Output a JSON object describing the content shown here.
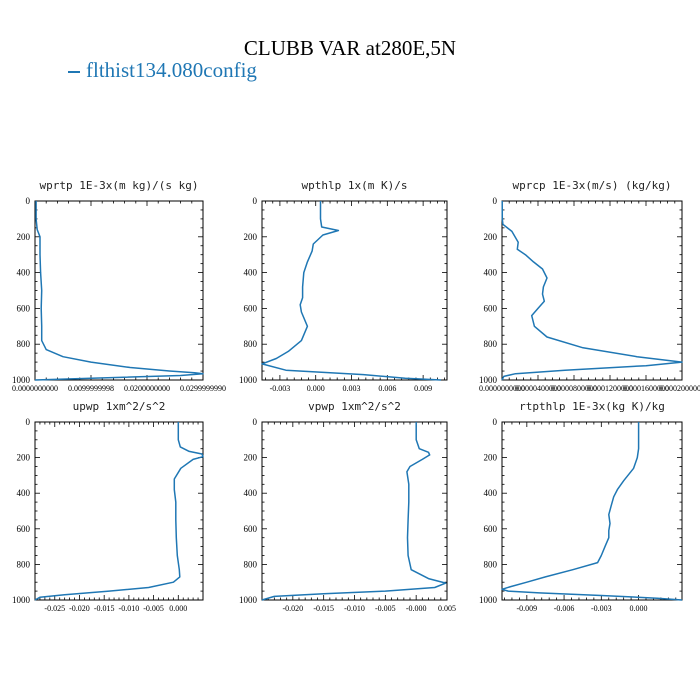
{
  "title": "CLUBB VAR at280E,5N",
  "legend": {
    "label": "flthist134.080config",
    "color": "#1f77b4"
  },
  "chart_data": [
    {
      "type": "line",
      "title": "wprtp  1E-3x(m kg)/(s kg)",
      "xlim": [
        0,
        0.03
      ],
      "xticks": [
        "0.0000000000",
        "0.0099999998",
        "0.0200000000",
        "0.0299999990"
      ],
      "xtick_values": [
        0,
        0.01,
        0.02,
        0.03
      ],
      "ylim": [
        1000,
        0
      ],
      "yticks": [
        0,
        200,
        400,
        600,
        800,
        1000
      ],
      "series": [
        {
          "color": "#1f77b4",
          "y": [
            0,
            100,
            160,
            200,
            260,
            300,
            400,
            500,
            600,
            700,
            780,
            830,
            870,
            900,
            930,
            950,
            960,
            965,
            975,
            990,
            1000
          ],
          "x": [
            0.0002,
            0.0002,
            0.0004,
            0.0009,
            0.0009,
            0.0009,
            0.001,
            0.0012,
            0.0011,
            0.0012,
            0.0012,
            0.002,
            0.005,
            0.01,
            0.017,
            0.024,
            0.0285,
            0.03,
            0.026,
            0.01,
            0.0
          ]
        }
      ]
    },
    {
      "type": "line",
      "title": "wpthlp  1x(m K)/s",
      "xlim": [
        -0.0045,
        0.011
      ],
      "xticks": [
        "-0.003",
        "0.000",
        "0.003",
        "0.006",
        "0.009"
      ],
      "xtick_values": [
        -0.003,
        0,
        0.003,
        0.006,
        0.009
      ],
      "ylim": [
        1000,
        0
      ],
      "yticks": [
        0,
        200,
        400,
        600,
        800,
        1000
      ],
      "series": [
        {
          "color": "#1f77b4",
          "y": [
            0,
            100,
            145,
            165,
            190,
            240,
            280,
            340,
            400,
            480,
            540,
            580,
            620,
            700,
            780,
            840,
            880,
            910,
            945,
            970,
            990,
            1000
          ],
          "x": [
            0.0004,
            0.0004,
            0.0005,
            0.0019,
            0.0006,
            -0.0002,
            -0.0003,
            -0.0007,
            -0.001,
            -0.0011,
            -0.0011,
            -0.0013,
            -0.0012,
            -0.0007,
            -0.0012,
            -0.0023,
            -0.0033,
            -0.0045,
            -0.0025,
            0.004,
            0.0075,
            0.0105
          ]
        }
      ]
    },
    {
      "type": "line",
      "title": "wprcp  1E-3x(m/s) (kg/kg)",
      "xlim": [
        0,
        0.0002
      ],
      "xticks": [
        "0.0000000000",
        "0.0000400000",
        "0.0000800000",
        "0.0001200000",
        "0.0001600000",
        "0.0002000000"
      ],
      "xtick_values": [
        0,
        4e-05,
        8e-05,
        0.00012,
        0.00016,
        0.0002
      ],
      "ylim": [
        1000,
        0
      ],
      "yticks": [
        0,
        200,
        400,
        600,
        800,
        1000
      ],
      "series": [
        {
          "color": "#1f77b4",
          "y": [
            0,
            100,
            130,
            170,
            230,
            270,
            300,
            340,
            380,
            430,
            480,
            520,
            560,
            600,
            640,
            700,
            760,
            820,
            870,
            900,
            920,
            945,
            965,
            980,
            1000
          ],
          "x": [
            2e-07,
            3e-07,
            1e-06,
            1.1e-05,
            1.8e-05,
            1.7e-05,
            2.6e-05,
            3.5e-05,
            4.5e-05,
            5e-05,
            4.6e-05,
            4.5e-05,
            4.7e-05,
            4e-05,
            3.3e-05,
            3.6e-05,
            5e-05,
            9e-05,
            0.00015,
            0.0002,
            0.00016,
            7e-05,
            1.5e-05,
            2e-06,
            0.0
          ]
        }
      ]
    },
    {
      "type": "line",
      "title": "upwp  1xm^2/s^2",
      "xlim": [
        -0.029,
        0.005
      ],
      "xticks": [
        "-0.025",
        "-0.020",
        "-0.015",
        "-0.010",
        "-0.005",
        "0.000"
      ],
      "xtick_values": [
        -0.025,
        -0.02,
        -0.015,
        -0.01,
        -0.005,
        0
      ],
      "ylim": [
        1000,
        0
      ],
      "yticks": [
        0,
        200,
        400,
        600,
        800,
        1000
      ],
      "series": [
        {
          "color": "#1f77b4",
          "y": [
            0,
            100,
            140,
            165,
            180,
            195,
            210,
            260,
            320,
            380,
            450,
            550,
            650,
            750,
            830,
            870,
            900,
            930,
            950,
            970,
            985,
            1000
          ],
          "x": [
            0.0,
            0.0,
            0.0004,
            0.0022,
            0.0048,
            0.005,
            0.003,
            0.0005,
            -0.0008,
            -0.0008,
            -0.0005,
            -0.0005,
            -0.0004,
            -0.0002,
            0.0002,
            0.0003,
            -0.001,
            -0.006,
            -0.014,
            -0.023,
            -0.028,
            -0.029
          ]
        }
      ]
    },
    {
      "type": "line",
      "title": "vpwp  1xm^2/s^2",
      "xlim": [
        -0.025,
        0.005
      ],
      "xticks": [
        "-0.020",
        "-0.015",
        "-0.010",
        "-0.005",
        "-0.000",
        "0.005"
      ],
      "xtick_values": [
        -0.02,
        -0.015,
        -0.01,
        -0.005,
        0,
        0.005
      ],
      "ylim": [
        1000,
        0
      ],
      "yticks": [
        0,
        200,
        400,
        600,
        800,
        1000
      ],
      "series": [
        {
          "color": "#1f77b4",
          "y": [
            0,
            100,
            150,
            170,
            185,
            210,
            250,
            280,
            350,
            450,
            550,
            650,
            750,
            830,
            880,
            905,
            930,
            950,
            965,
            980,
            1000
          ],
          "x": [
            0.0,
            0.0,
            0.0005,
            0.002,
            0.0022,
            0.001,
            -0.001,
            -0.0015,
            -0.0012,
            -0.0012,
            -0.0013,
            -0.0014,
            -0.0013,
            -0.0008,
            0.002,
            0.0048,
            0.003,
            -0.005,
            -0.015,
            -0.023,
            -0.025
          ]
        }
      ]
    },
    {
      "type": "line",
      "title": "rtpthlp  1E-3x(kg K)/kg",
      "xlim": [
        -0.011,
        0.0035
      ],
      "xticks": [
        "-0.009",
        "-0.006",
        "-0.003",
        "0.000"
      ],
      "xtick_values": [
        -0.009,
        -0.006,
        -0.003,
        0
      ],
      "ylim": [
        1000,
        0
      ],
      "yticks": [
        0,
        200,
        400,
        600,
        800,
        1000
      ],
      "series": [
        {
          "color": "#1f77b4",
          "y": [
            0,
            150,
            200,
            260,
            330,
            380,
            420,
            470,
            520,
            570,
            610,
            650,
            700,
            750,
            790,
            830,
            870,
            900,
            925,
            940,
            950,
            960,
            975,
            990,
            1000
          ],
          "x": [
            0.0,
            0.0,
            -0.0001,
            -0.0004,
            -0.0012,
            -0.0017,
            -0.002,
            -0.0022,
            -0.0024,
            -0.0023,
            -0.0024,
            -0.0024,
            -0.0027,
            -0.003,
            -0.0033,
            -0.0053,
            -0.0075,
            -0.009,
            -0.0103,
            -0.011,
            -0.0105,
            -0.008,
            -0.003,
            0.0015,
            0.0035
          ]
        }
      ]
    }
  ]
}
